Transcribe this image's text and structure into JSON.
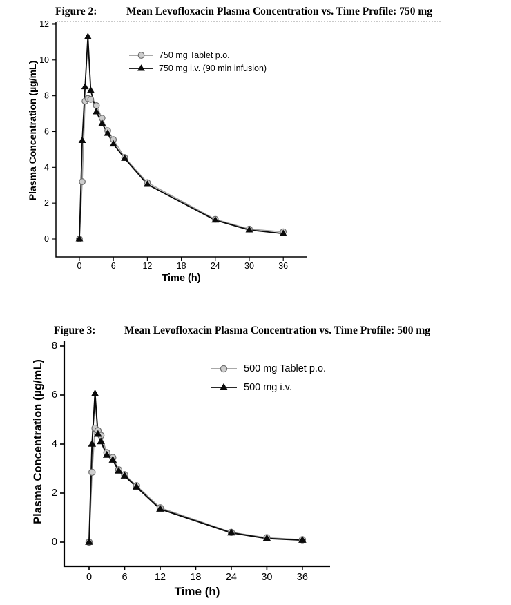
{
  "document": {
    "background": "#ffffff",
    "text_color": "#000000",
    "axis_color": "#000000"
  },
  "chart_data": [
    {
      "type": "line",
      "figure_label": "Figure 2:",
      "title": "Mean Levofloxacin Plasma Concentration vs. Time Profile: 750 mg",
      "xlabel": "Time (h)",
      "ylabel": "Plasma Concentration (µg/mL)",
      "xlim": [
        0,
        36
      ],
      "ylim": [
        0,
        12
      ],
      "xticks": [
        0,
        6,
        12,
        18,
        24,
        30,
        36
      ],
      "yticks": [
        0,
        2,
        4,
        6,
        8,
        10,
        12
      ],
      "grid": false,
      "legend_position": "inside-upper-center",
      "x": [
        0,
        0.5,
        1,
        1.5,
        2,
        3,
        4,
        5,
        6,
        8,
        12,
        24,
        30,
        36
      ],
      "series": [
        {
          "name": "750 mg Tablet p.o.",
          "marker": "circle",
          "line_color": "#9c9c9c",
          "marker_fill": "#cdcdcd",
          "marker_stroke": "#6e6e6e",
          "values": [
            0,
            3.2,
            7.7,
            7.85,
            7.8,
            7.45,
            6.75,
            6.05,
            5.55,
            4.55,
            3.15,
            1.1,
            0.55,
            0.4
          ]
        },
        {
          "name": "750 mg i.v. (90 min infusion)",
          "marker": "triangle",
          "line_color": "#0a0a0a",
          "marker_fill": "#0a0a0a",
          "marker_stroke": "#0a0a0a",
          "values": [
            0,
            5.5,
            8.5,
            11.3,
            8.3,
            7.1,
            6.45,
            5.9,
            5.3,
            4.5,
            3.05,
            1.05,
            0.5,
            0.3
          ]
        }
      ]
    },
    {
      "type": "line",
      "figure_label": "Figure 3:",
      "title": "Mean Levofloxacin Plasma Concentration vs. Time Profile: 500 mg",
      "xlabel": "Time (h)",
      "ylabel": "Plasma Concentration (µg/mL)",
      "xlim": [
        0,
        36
      ],
      "ylim": [
        0,
        8
      ],
      "xticks": [
        0,
        6,
        12,
        18,
        24,
        30,
        36
      ],
      "yticks": [
        0,
        2,
        4,
        6,
        8
      ],
      "grid": false,
      "legend_position": "inside-upper-center",
      "x": [
        0,
        0.5,
        1,
        1.5,
        2,
        3,
        4,
        5,
        6,
        8,
        12,
        24,
        30,
        36
      ],
      "series": [
        {
          "name": "500 mg Tablet p.o.",
          "marker": "circle",
          "line_color": "#9c9c9c",
          "marker_fill": "#cdcdcd",
          "marker_stroke": "#6e6e6e",
          "values": [
            0,
            2.85,
            4.65,
            4.55,
            4.35,
            3.65,
            3.45,
            2.95,
            2.75,
            2.3,
            1.4,
            0.4,
            0.18,
            0.1
          ]
        },
        {
          "name": "500 mg i.v.",
          "marker": "triangle",
          "line_color": "#0a0a0a",
          "marker_fill": "#0a0a0a",
          "marker_stroke": "#0a0a0a",
          "values": [
            0,
            4.0,
            6.05,
            4.4,
            4.1,
            3.55,
            3.35,
            2.9,
            2.7,
            2.25,
            1.35,
            0.38,
            0.15,
            0.08
          ]
        }
      ]
    }
  ]
}
